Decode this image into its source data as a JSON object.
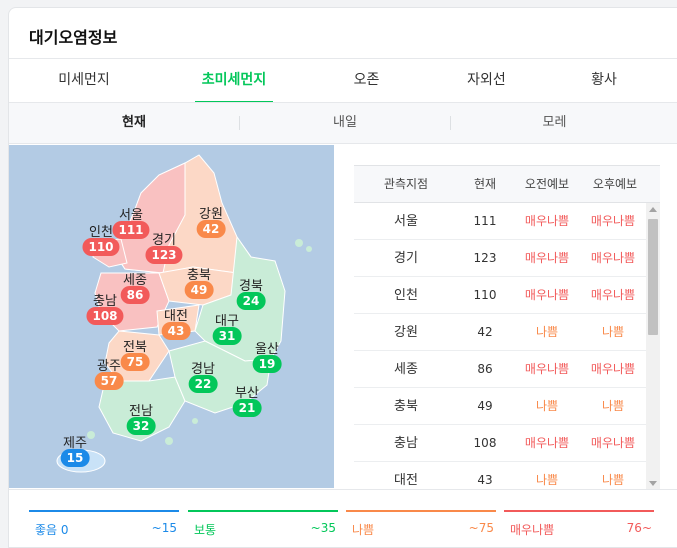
{
  "panel": {
    "title": "대기오염정보"
  },
  "tabs": [
    {
      "label": "미세먼지"
    },
    {
      "label": "초미세먼지"
    },
    {
      "label": "오존"
    },
    {
      "label": "자외선"
    },
    {
      "label": "황사"
    }
  ],
  "active_tab": "초미세먼지",
  "days": [
    {
      "label": "현재"
    },
    {
      "label": "내일"
    },
    {
      "label": "모레"
    }
  ],
  "active_day": "현재",
  "colors": {
    "good": "#1c8ae8",
    "normal": "#03c75a",
    "bad": "#f9894a",
    "very_bad": "#f25a5a",
    "accent": "#03c75a"
  },
  "map": {
    "regions": [
      {
        "name": "서울",
        "value": "111",
        "level": "very_bad"
      },
      {
        "name": "인천",
        "value": "110",
        "level": "very_bad"
      },
      {
        "name": "경기",
        "value": "123",
        "level": "very_bad"
      },
      {
        "name": "강원",
        "value": "42",
        "level": "bad"
      },
      {
        "name": "세종",
        "value": "86",
        "level": "very_bad"
      },
      {
        "name": "충북",
        "value": "49",
        "level": "bad"
      },
      {
        "name": "경북",
        "value": "24",
        "level": "normal"
      },
      {
        "name": "충남",
        "value": "108",
        "level": "very_bad"
      },
      {
        "name": "대전",
        "value": "43",
        "level": "bad"
      },
      {
        "name": "대구",
        "value": "31",
        "level": "normal"
      },
      {
        "name": "전북",
        "value": "75",
        "level": "bad"
      },
      {
        "name": "울산",
        "value": "19",
        "level": "normal"
      },
      {
        "name": "광주",
        "value": "57",
        "level": "bad"
      },
      {
        "name": "경남",
        "value": "22",
        "level": "normal"
      },
      {
        "name": "부산",
        "value": "21",
        "level": "normal"
      },
      {
        "name": "전남",
        "value": "32",
        "level": "normal"
      },
      {
        "name": "제주",
        "value": "15",
        "level": "good"
      }
    ]
  },
  "table": {
    "headers": [
      "관측지점",
      "현재",
      "오전예보",
      "오후예보"
    ],
    "rows": [
      {
        "name": "서울",
        "now": "111",
        "am": "매우나쁨",
        "pm": "매우나쁨",
        "am_level": "very_bad",
        "pm_level": "very_bad"
      },
      {
        "name": "경기",
        "now": "123",
        "am": "매우나쁨",
        "pm": "매우나쁨",
        "am_level": "very_bad",
        "pm_level": "very_bad"
      },
      {
        "name": "인천",
        "now": "110",
        "am": "매우나쁨",
        "pm": "매우나쁨",
        "am_level": "very_bad",
        "pm_level": "very_bad"
      },
      {
        "name": "강원",
        "now": "42",
        "am": "나쁨",
        "pm": "나쁨",
        "am_level": "bad",
        "pm_level": "bad"
      },
      {
        "name": "세종",
        "now": "86",
        "am": "매우나쁨",
        "pm": "매우나쁨",
        "am_level": "very_bad",
        "pm_level": "very_bad"
      },
      {
        "name": "충북",
        "now": "49",
        "am": "나쁨",
        "pm": "나쁨",
        "am_level": "bad",
        "pm_level": "bad"
      },
      {
        "name": "충남",
        "now": "108",
        "am": "매우나쁨",
        "pm": "매우나쁨",
        "am_level": "very_bad",
        "pm_level": "very_bad"
      },
      {
        "name": "대전",
        "now": "43",
        "am": "나쁨",
        "pm": "나쁨",
        "am_level": "bad",
        "pm_level": "bad"
      }
    ]
  },
  "legend": [
    {
      "label": "좋음 0",
      "range": "~15",
      "level": "good"
    },
    {
      "label": "보통",
      "range": "~35",
      "level": "normal"
    },
    {
      "label": "나쁨",
      "range": "~75",
      "level": "bad"
    },
    {
      "label": "매우나쁨",
      "range": "76~",
      "level": "very_bad"
    }
  ]
}
